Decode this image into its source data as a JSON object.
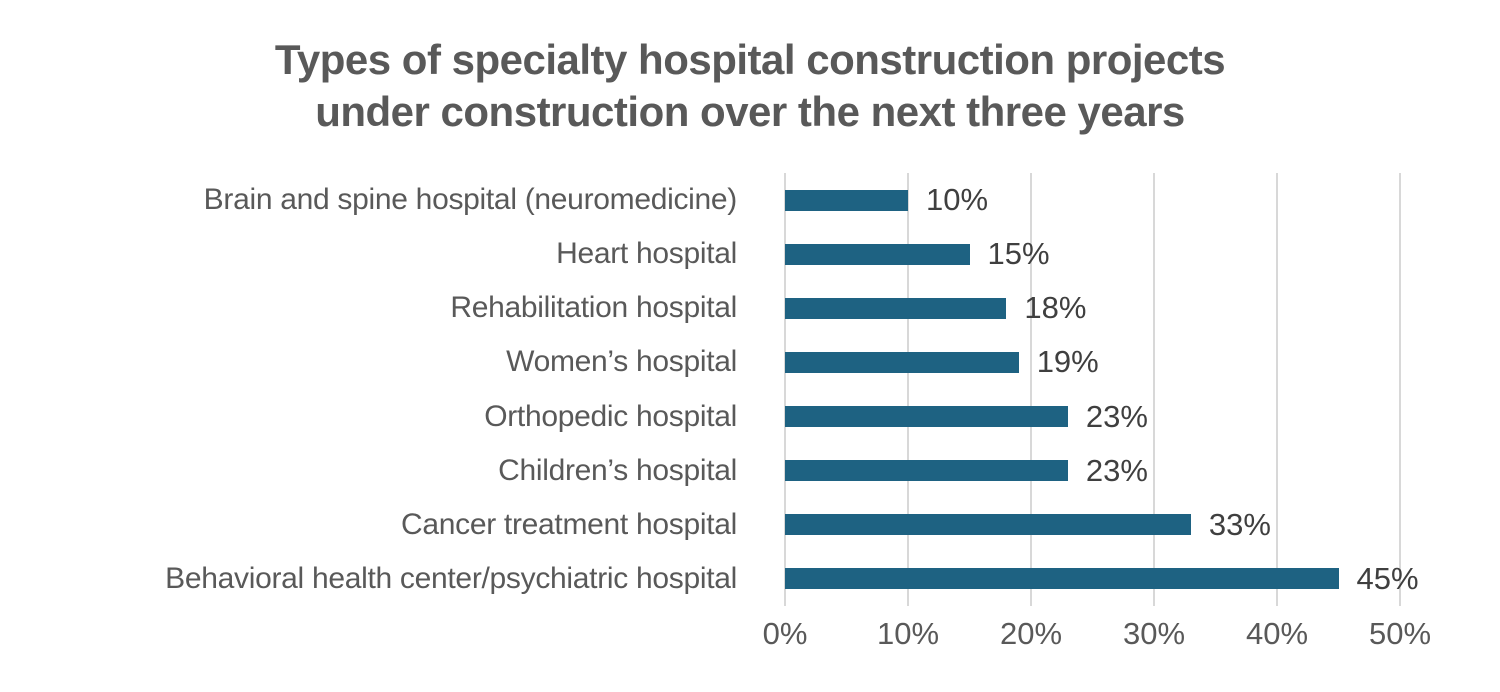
{
  "chart_data": {
    "type": "bar",
    "orientation": "horizontal",
    "title": "Types of specialty hospital construction projects under construction over the next three years",
    "title_lines": [
      "Types of specialty hospital construction projects",
      "under construction over the next three years"
    ],
    "categories": [
      "Brain and spine hospital (neuromedicine)",
      "Heart hospital",
      "Rehabilitation hospital",
      "Women’s hospital",
      "Orthopedic hospital",
      "Children’s hospital",
      "Cancer treatment hospital",
      "Behavioral health center/psychiatric hospital"
    ],
    "values": [
      10,
      15,
      18,
      19,
      23,
      23,
      33,
      45
    ],
    "value_labels": [
      "10%",
      "15%",
      "18%",
      "19%",
      "23%",
      "23%",
      "33%",
      "45%"
    ],
    "xlabel": "",
    "ylabel": "",
    "xlim": [
      0,
      50
    ],
    "x_tick_values": [
      0,
      10,
      20,
      30,
      40,
      50
    ],
    "x_tick_labels": [
      "0%",
      "10%",
      "20%",
      "30%",
      "40%",
      "50%"
    ],
    "grid": true,
    "legend": false,
    "colors": {
      "bar": "#1e6282",
      "gridline": "#d8d8d8",
      "title": "#595959",
      "category_label": "#595959",
      "value_label": "#3f3f3f",
      "tick_label": "#595959",
      "background": "#ffffff"
    }
  }
}
